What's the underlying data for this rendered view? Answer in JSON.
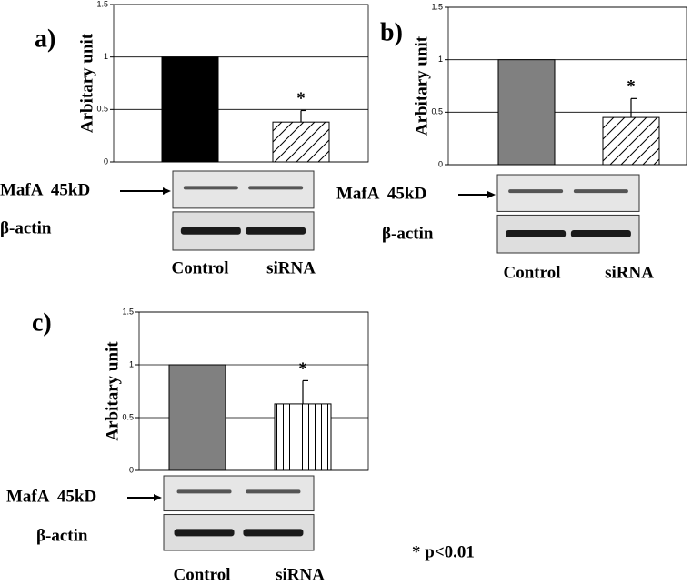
{
  "chart_data": [
    {
      "type": "bar",
      "label": "a)",
      "ylabel": "Arbitary unit",
      "categories": [
        "Control",
        "siRNA"
      ],
      "values": [
        1,
        0.38
      ],
      "errors": [
        null,
        0.11
      ],
      "colors": [
        "#000000",
        "#ffffff"
      ],
      "patterns": [
        null,
        "diagonal"
      ],
      "ylim": [
        0,
        1.5
      ],
      "yticks": [
        0,
        0.5,
        1,
        1.5
      ],
      "grid": true,
      "annotation": "*",
      "blot_labels": [
        "MafA  45kD",
        "β-actin"
      ]
    },
    {
      "type": "bar",
      "label": "b)",
      "ylabel": "Arbitary unit",
      "categories": [
        "Control",
        "siRNA"
      ],
      "values": [
        1,
        0.45
      ],
      "errors": [
        null,
        0.18
      ],
      "colors": [
        "#808080",
        "#ffffff"
      ],
      "patterns": [
        null,
        "diagonal"
      ],
      "ylim": [
        0,
        1.5
      ],
      "yticks": [
        0,
        0.5,
        1,
        1.5
      ],
      "grid": true,
      "annotation": "*",
      "blot_labels": [
        "MafA  45kD",
        "β-actin"
      ]
    },
    {
      "type": "bar",
      "label": "c)",
      "ylabel": "Arbitary unit",
      "categories": [
        "Control",
        "siRNA"
      ],
      "values": [
        1,
        0.63
      ],
      "errors": [
        null,
        0.22
      ],
      "colors": [
        "#808080",
        "#ffffff"
      ],
      "patterns": [
        null,
        "vertical"
      ],
      "ylim": [
        0,
        1.5
      ],
      "yticks": [
        0,
        0.5,
        1,
        1.5
      ],
      "grid": true,
      "annotation": "*",
      "blot_labels": [
        "MafA  45kD",
        "β-actin"
      ]
    }
  ],
  "footnote": "* p<0.01"
}
